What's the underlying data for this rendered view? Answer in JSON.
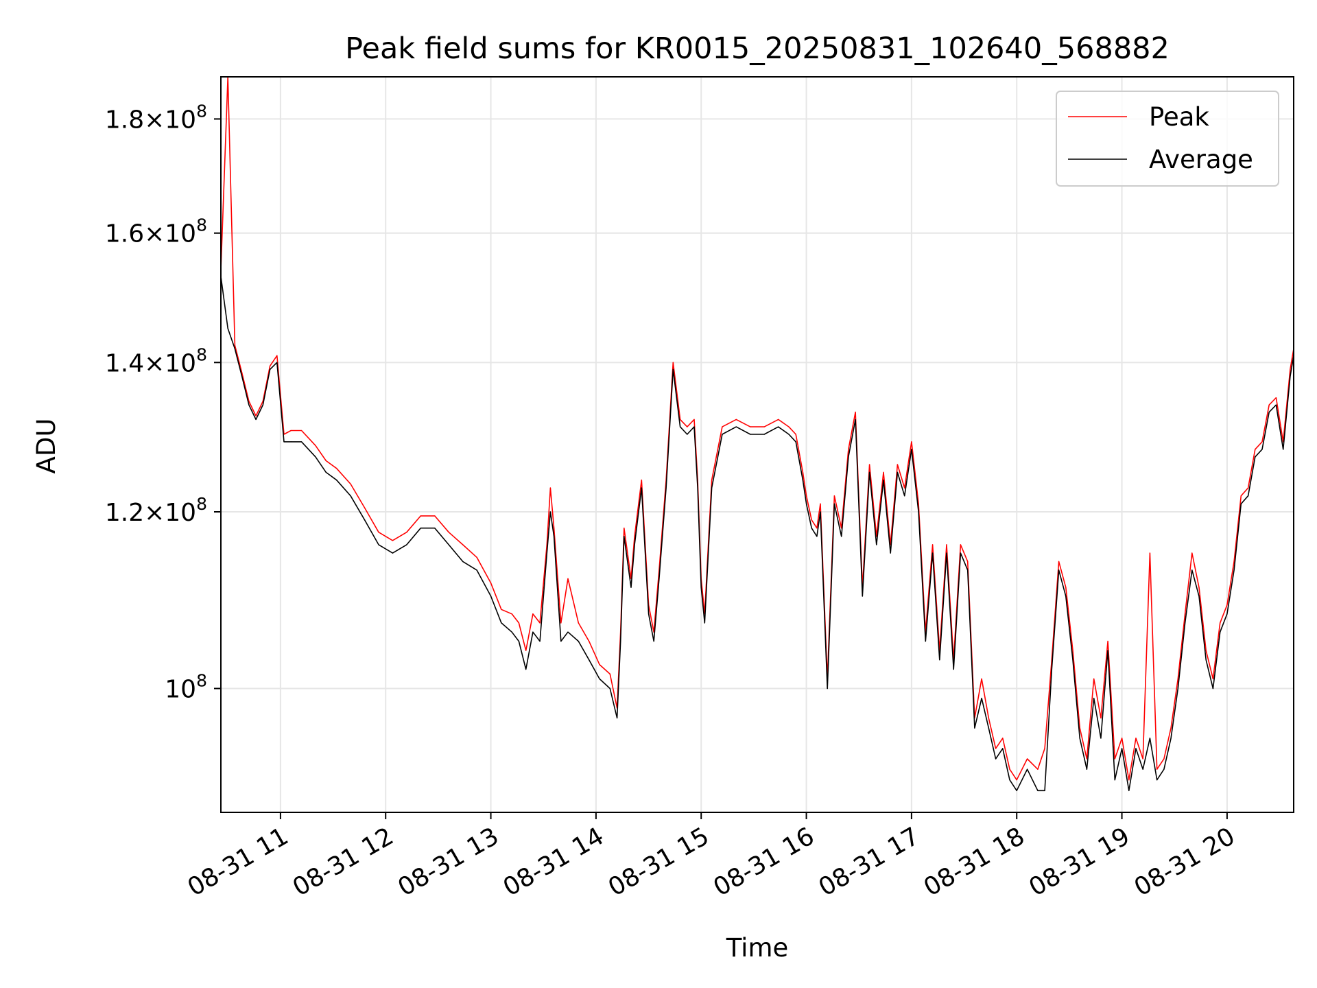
{
  "chart_data": {
    "type": "line",
    "title": "Peak field sums for KR0015_20250831_102640_568882",
    "xlabel": "Time",
    "ylabel": "ADU",
    "yscale": "log",
    "grid": true,
    "legend_placement": "top-right",
    "xlim": [
      "2025-08-31 10:26",
      "2025-08-31 20:38"
    ],
    "ylim": [
      88000000,
      188000000
    ],
    "x_ticks": [
      {
        "value": "2025-08-31 11:00",
        "label": "08-31 11"
      },
      {
        "value": "2025-08-31 12:00",
        "label": "08-31 12"
      },
      {
        "value": "2025-08-31 13:00",
        "label": "08-31 13"
      },
      {
        "value": "2025-08-31 14:00",
        "label": "08-31 14"
      },
      {
        "value": "2025-08-31 15:00",
        "label": "08-31 15"
      },
      {
        "value": "2025-08-31 16:00",
        "label": "08-31 16"
      },
      {
        "value": "2025-08-31 17:00",
        "label": "08-31 17"
      },
      {
        "value": "2025-08-31 18:00",
        "label": "08-31 18"
      },
      {
        "value": "2025-08-31 19:00",
        "label": "08-31 19"
      },
      {
        "value": "2025-08-31 20:00",
        "label": "08-31 20"
      }
    ],
    "y_ticks": [
      {
        "value": 100000000,
        "mantissa": "",
        "exp": "8"
      },
      {
        "value": 120000000,
        "mantissa": "1.2",
        "exp": "8"
      },
      {
        "value": 140000000,
        "mantissa": "1.4",
        "exp": "8"
      },
      {
        "value": 160000000,
        "mantissa": "1.6",
        "exp": "8"
      },
      {
        "value": 180000000,
        "mantissa": "1.8",
        "exp": "8"
      }
    ],
    "series": [
      {
        "name": "Average",
        "color": "#000000",
        "x": [
          "2025-08-31 10:26",
          "2025-08-31 10:30",
          "2025-08-31 10:34",
          "2025-08-31 10:38",
          "2025-08-31 10:42",
          "2025-08-31 10:46",
          "2025-08-31 10:50",
          "2025-08-31 10:54",
          "2025-08-31 10:58",
          "2025-08-31 11:02",
          "2025-08-31 11:06",
          "2025-08-31 11:12",
          "2025-08-31 11:20",
          "2025-08-31 11:26",
          "2025-08-31 11:32",
          "2025-08-31 11:40",
          "2025-08-31 11:48",
          "2025-08-31 11:56",
          "2025-08-31 12:04",
          "2025-08-31 12:12",
          "2025-08-31 12:20",
          "2025-08-31 12:28",
          "2025-08-31 12:36",
          "2025-08-31 12:44",
          "2025-08-31 12:52",
          "2025-08-31 13:00",
          "2025-08-31 13:06",
          "2025-08-31 13:12",
          "2025-08-31 13:16",
          "2025-08-31 13:20",
          "2025-08-31 13:24",
          "2025-08-31 13:28",
          "2025-08-31 13:32",
          "2025-08-31 13:34",
          "2025-08-31 13:36",
          "2025-08-31 13:40",
          "2025-08-31 13:44",
          "2025-08-31 13:50",
          "2025-08-31 13:56",
          "2025-08-31 14:02",
          "2025-08-31 14:08",
          "2025-08-31 14:12",
          "2025-08-31 14:14",
          "2025-08-31 14:16",
          "2025-08-31 14:20",
          "2025-08-31 14:22",
          "2025-08-31 14:26",
          "2025-08-31 14:30",
          "2025-08-31 14:33",
          "2025-08-31 14:36",
          "2025-08-31 14:40",
          "2025-08-31 14:44",
          "2025-08-31 14:48",
          "2025-08-31 14:52",
          "2025-08-31 14:56",
          "2025-08-31 14:58",
          "2025-08-31 15:00",
          "2025-08-31 15:02",
          "2025-08-31 15:06",
          "2025-08-31 15:12",
          "2025-08-31 15:20",
          "2025-08-31 15:28",
          "2025-08-31 15:36",
          "2025-08-31 15:44",
          "2025-08-31 15:50",
          "2025-08-31 15:54",
          "2025-08-31 15:58",
          "2025-08-31 16:00",
          "2025-08-31 16:03",
          "2025-08-31 16:06",
          "2025-08-31 16:08",
          "2025-08-31 16:12",
          "2025-08-31 16:16",
          "2025-08-31 16:20",
          "2025-08-31 16:24",
          "2025-08-31 16:28",
          "2025-08-31 16:32",
          "2025-08-31 16:36",
          "2025-08-31 16:40",
          "2025-08-31 16:44",
          "2025-08-31 16:48",
          "2025-08-31 16:52",
          "2025-08-31 16:56",
          "2025-08-31 17:00",
          "2025-08-31 17:04",
          "2025-08-31 17:08",
          "2025-08-31 17:12",
          "2025-08-31 17:16",
          "2025-08-31 17:20",
          "2025-08-31 17:24",
          "2025-08-31 17:28",
          "2025-08-31 17:32",
          "2025-08-31 17:36",
          "2025-08-31 17:40",
          "2025-08-31 17:44",
          "2025-08-31 17:48",
          "2025-08-31 17:52",
          "2025-08-31 17:56",
          "2025-08-31 18:00",
          "2025-08-31 18:06",
          "2025-08-31 18:12",
          "2025-08-31 18:16",
          "2025-08-31 18:20",
          "2025-08-31 18:24",
          "2025-08-31 18:28",
          "2025-08-31 18:32",
          "2025-08-31 18:36",
          "2025-08-31 18:40",
          "2025-08-31 18:44",
          "2025-08-31 18:48",
          "2025-08-31 18:52",
          "2025-08-31 18:56",
          "2025-08-31 19:00",
          "2025-08-31 19:04",
          "2025-08-31 19:08",
          "2025-08-31 19:12",
          "2025-08-31 19:16",
          "2025-08-31 19:20",
          "2025-08-31 19:24",
          "2025-08-31 19:28",
          "2025-08-31 19:32",
          "2025-08-31 19:36",
          "2025-08-31 19:40",
          "2025-08-31 19:44",
          "2025-08-31 19:48",
          "2025-08-31 19:52",
          "2025-08-31 19:56",
          "2025-08-31 20:00",
          "2025-08-31 20:04",
          "2025-08-31 20:08",
          "2025-08-31 20:12",
          "2025-08-31 20:16",
          "2025-08-31 20:20",
          "2025-08-31 20:24",
          "2025-08-31 20:28",
          "2025-08-31 20:32",
          "2025-08-31 20:36",
          "2025-08-31 20:38"
        ],
        "values": [
          153000000,
          145000000,
          142000000,
          138000000,
          134000000,
          132000000,
          134000000,
          139000000,
          140000000,
          129000000,
          129000000,
          129000000,
          127000000,
          125000000,
          124000000,
          122000000,
          119000000,
          116000000,
          115000000,
          116000000,
          118000000,
          118000000,
          116000000,
          114000000,
          113000000,
          110000000,
          107000000,
          106000000,
          105000000,
          102000000,
          106000000,
          105000000,
          115000000,
          120000000,
          117000000,
          105000000,
          106000000,
          105000000,
          103000000,
          101000000,
          100000000,
          97000000,
          105000000,
          117000000,
          111000000,
          116000000,
          123000000,
          108000000,
          105000000,
          112000000,
          123000000,
          139000000,
          131000000,
          130000000,
          131000000,
          123000000,
          111000000,
          107000000,
          123000000,
          130000000,
          131000000,
          130000000,
          130000000,
          131000000,
          130000000,
          129000000,
          124000000,
          121000000,
          118000000,
          117000000,
          120000000,
          100000000,
          121000000,
          117000000,
          127000000,
          132000000,
          110000000,
          125000000,
          116000000,
          124000000,
          115000000,
          125000000,
          122000000,
          128000000,
          120000000,
          105000000,
          115000000,
          103000000,
          115000000,
          102000000,
          115000000,
          113000000,
          96000000,
          99000000,
          96000000,
          93000000,
          94000000,
          91000000,
          90000000,
          92000000,
          90000000,
          90000000,
          102000000,
          113000000,
          110000000,
          103000000,
          95000000,
          92000000,
          99000000,
          95000000,
          104000000,
          91000000,
          94000000,
          90000000,
          94000000,
          92000000,
          95000000,
          91000000,
          92000000,
          95000000,
          100000000,
          107000000,
          113000000,
          110000000,
          103000000,
          100000000,
          106000000,
          108000000,
          113000000,
          121000000,
          122000000,
          127000000,
          128000000,
          133000000,
          134000000,
          128000000,
          138000000,
          141000000
        ],
        "chart_data_note_ignore": ""
      },
      {
        "name": "Peak",
        "color": "#ff0000",
        "x": [
          "2025-08-31 10:26",
          "2025-08-31 10:30",
          "2025-08-31 10:34",
          "2025-08-31 10:38",
          "2025-08-31 10:42",
          "2025-08-31 10:46",
          "2025-08-31 10:50",
          "2025-08-31 10:54",
          "2025-08-31 10:58",
          "2025-08-31 11:02",
          "2025-08-31 11:06",
          "2025-08-31 11:12",
          "2025-08-31 11:20",
          "2025-08-31 11:26",
          "2025-08-31 11:32",
          "2025-08-31 11:40",
          "2025-08-31 11:48",
          "2025-08-31 11:56",
          "2025-08-31 12:04",
          "2025-08-31 12:12",
          "2025-08-31 12:20",
          "2025-08-31 12:28",
          "2025-08-31 12:36",
          "2025-08-31 12:44",
          "2025-08-31 12:52",
          "2025-08-31 13:00",
          "2025-08-31 13:06",
          "2025-08-31 13:12",
          "2025-08-31 13:16",
          "2025-08-31 13:20",
          "2025-08-31 13:24",
          "2025-08-31 13:28",
          "2025-08-31 13:32",
          "2025-08-31 13:34",
          "2025-08-31 13:36",
          "2025-08-31 13:40",
          "2025-08-31 13:44",
          "2025-08-31 13:50",
          "2025-08-31 13:56",
          "2025-08-31 14:02",
          "2025-08-31 14:08",
          "2025-08-31 14:12",
          "2025-08-31 14:14",
          "2025-08-31 14:16",
          "2025-08-31 14:20",
          "2025-08-31 14:22",
          "2025-08-31 14:26",
          "2025-08-31 14:30",
          "2025-08-31 14:33",
          "2025-08-31 14:36",
          "2025-08-31 14:40",
          "2025-08-31 14:44",
          "2025-08-31 14:48",
          "2025-08-31 14:52",
          "2025-08-31 14:56",
          "2025-08-31 14:58",
          "2025-08-31 15:00",
          "2025-08-31 15:02",
          "2025-08-31 15:06",
          "2025-08-31 15:12",
          "2025-08-31 15:20",
          "2025-08-31 15:28",
          "2025-08-31 15:36",
          "2025-08-31 15:44",
          "2025-08-31 15:50",
          "2025-08-31 15:54",
          "2025-08-31 15:58",
          "2025-08-31 16:00",
          "2025-08-31 16:03",
          "2025-08-31 16:06",
          "2025-08-31 16:08",
          "2025-08-31 16:12",
          "2025-08-31 16:16",
          "2025-08-31 16:20",
          "2025-08-31 16:24",
          "2025-08-31 16:28",
          "2025-08-31 16:32",
          "2025-08-31 16:36",
          "2025-08-31 16:40",
          "2025-08-31 16:44",
          "2025-08-31 16:48",
          "2025-08-31 16:52",
          "2025-08-31 16:56",
          "2025-08-31 17:00",
          "2025-08-31 17:04",
          "2025-08-31 17:08",
          "2025-08-31 17:12",
          "2025-08-31 17:16",
          "2025-08-31 17:20",
          "2025-08-31 17:24",
          "2025-08-31 17:28",
          "2025-08-31 17:32",
          "2025-08-31 17:36",
          "2025-08-31 17:40",
          "2025-08-31 17:44",
          "2025-08-31 17:48",
          "2025-08-31 17:52",
          "2025-08-31 17:56",
          "2025-08-31 18:00",
          "2025-08-31 18:06",
          "2025-08-31 18:12",
          "2025-08-31 18:16",
          "2025-08-31 18:20",
          "2025-08-31 18:24",
          "2025-08-31 18:28",
          "2025-08-31 18:32",
          "2025-08-31 18:36",
          "2025-08-31 18:40",
          "2025-08-31 18:44",
          "2025-08-31 18:48",
          "2025-08-31 18:52",
          "2025-08-31 18:56",
          "2025-08-31 19:00",
          "2025-08-31 19:04",
          "2025-08-31 19:08",
          "2025-08-31 19:12",
          "2025-08-31 19:16",
          "2025-08-31 19:20",
          "2025-08-31 19:24",
          "2025-08-31 19:28",
          "2025-08-31 19:32",
          "2025-08-31 19:36",
          "2025-08-31 19:40",
          "2025-08-31 19:44",
          "2025-08-31 19:48",
          "2025-08-31 19:52",
          "2025-08-31 19:56",
          "2025-08-31 20:00",
          "2025-08-31 20:04",
          "2025-08-31 20:08",
          "2025-08-31 20:12",
          "2025-08-31 20:16",
          "2025-08-31 20:20",
          "2025-08-31 20:24",
          "2025-08-31 20:28",
          "2025-08-31 20:32",
          "2025-08-31 20:36",
          "2025-08-31 20:38"
        ],
        "values": [
          154000000,
          188000000,
          142500000,
          138500000,
          134500000,
          132500000,
          134500000,
          139500000,
          141000000,
          130000000,
          130500000,
          130500000,
          128500000,
          126500000,
          125500000,
          123500000,
          120500000,
          117500000,
          116500000,
          117500000,
          119500000,
          119500000,
          117500000,
          116000000,
          114500000,
          111500000,
          108500000,
          108000000,
          107000000,
          104000000,
          108000000,
          107000000,
          116000000,
          123000000,
          118000000,
          107000000,
          112000000,
          107000000,
          105000000,
          102500000,
          101500000,
          98000000,
          106000000,
          118000000,
          112000000,
          117000000,
          124000000,
          109000000,
          106000000,
          113000000,
          124000000,
          140000000,
          132000000,
          131000000,
          132000000,
          124000000,
          112000000,
          108000000,
          124000000,
          131000000,
          132000000,
          131000000,
          131000000,
          132000000,
          131000000,
          130000000,
          125000000,
          122000000,
          119000000,
          118000000,
          121000000,
          101000000,
          122000000,
          118000000,
          128000000,
          133000000,
          111000000,
          126000000,
          117000000,
          125000000,
          116000000,
          126000000,
          123000000,
          129000000,
          121000000,
          106000000,
          116000000,
          104000000,
          116000000,
          103000000,
          116000000,
          114000000,
          97000000,
          101000000,
          97000000,
          94000000,
          95000000,
          92000000,
          91000000,
          93000000,
          92000000,
          94000000,
          103000000,
          114000000,
          111000000,
          104000000,
          96000000,
          93000000,
          101000000,
          97000000,
          105000000,
          93000000,
          95000000,
          91000000,
          95000000,
          93000000,
          115000000,
          92000000,
          93000000,
          96000000,
          101000000,
          108000000,
          115000000,
          111000000,
          104000000,
          101000000,
          107000000,
          109000000,
          114000000,
          122000000,
          123000000,
          128000000,
          129000000,
          134000000,
          135000000,
          129000000,
          139000000,
          142000000
        ]
      }
    ]
  }
}
